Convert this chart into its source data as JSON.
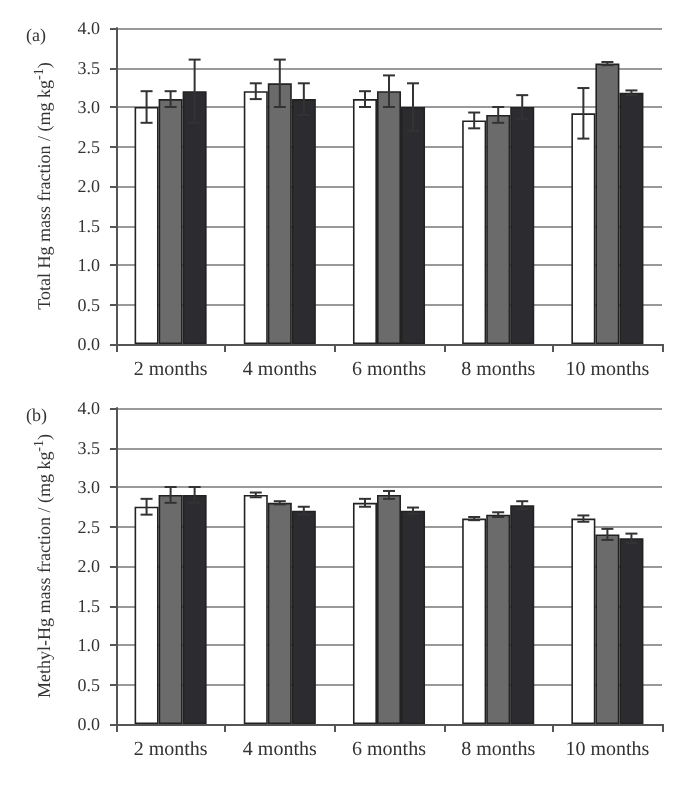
{
  "chart_data": [
    {
      "type": "bar",
      "title": "(a)",
      "ylabel": "Total Hg mass fraction / (mg kg$^{-1}$)",
      "categories": [
        "2 months",
        "4 months",
        "6 months",
        "8 months",
        "10 months"
      ],
      "series": [
        {
          "color": "#ffffff",
          "values": [
            3.0,
            3.2,
            3.1,
            2.83,
            2.92
          ],
          "errors": [
            0.2,
            0.1,
            0.1,
            0.1,
            0.32
          ]
        },
        {
          "color": "#6b6b6b",
          "values": [
            3.1,
            3.3,
            3.2,
            2.9,
            3.55
          ],
          "errors": [
            0.1,
            0.3,
            0.2,
            0.1,
            0.02
          ]
        },
        {
          "color": "#2c2c30",
          "values": [
            3.2,
            3.1,
            3.0,
            3.0,
            3.18
          ],
          "errors": [
            0.4,
            0.2,
            0.3,
            0.15,
            0.03
          ]
        }
      ],
      "ylim": [
        0,
        4
      ],
      "yticks": [
        {
          "value": 0,
          "label": "0.0"
        },
        0.5,
        {
          "value": 1,
          "label": "1.0"
        },
        1.5,
        {
          "value": 2,
          "label": "2.0"
        },
        2.5,
        {
          "value": 3,
          "label": "3.0"
        },
        3.5,
        {
          "value": 4,
          "label": "4.0"
        }
      ],
      "grid": "y"
    },
    {
      "type": "bar",
      "title": "(b)",
      "ylabel": "Methyl-Hg mass fraction / (mg kg$^{-1}$)",
      "categories": [
        "2 months",
        "4 months",
        "6 months",
        "8 months",
        "10 months"
      ],
      "series": [
        {
          "color": "#ffffff",
          "values": [
            2.75,
            2.9,
            2.8,
            2.6,
            2.6
          ],
          "errors": [
            0.1,
            0.03,
            0.05,
            0.02,
            0.04
          ]
        },
        {
          "color": "#6b6b6b",
          "values": [
            2.9,
            2.8,
            2.9,
            2.65,
            2.4
          ],
          "errors": [
            0.1,
            0.02,
            0.05,
            0.03,
            0.07
          ]
        },
        {
          "color": "#2c2c30",
          "values": [
            2.9,
            2.7,
            2.7,
            2.77,
            2.35
          ],
          "errors": [
            0.1,
            0.05,
            0.04,
            0.05,
            0.06
          ]
        }
      ],
      "ylim": [
        0,
        4
      ],
      "yticks": [
        {
          "value": 0,
          "label": "0.0"
        },
        0.5,
        {
          "value": 1,
          "label": "1.0"
        },
        1.5,
        {
          "value": 2,
          "label": "2.0"
        },
        2.5,
        {
          "value": 3,
          "label": "3.0"
        },
        3.5,
        {
          "value": 4,
          "label": "4.0"
        }
      ],
      "grid": "y"
    }
  ]
}
